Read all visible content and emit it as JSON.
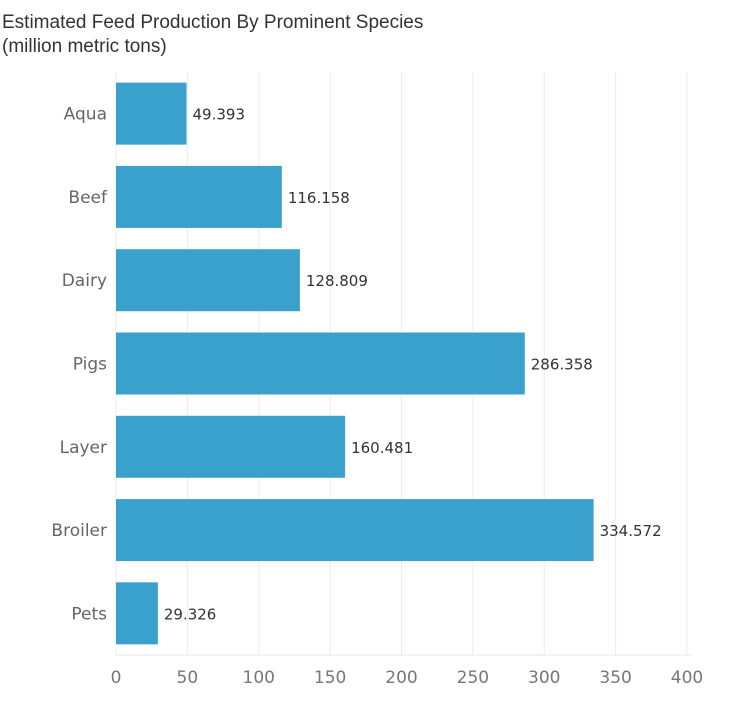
{
  "chart_data": {
    "type": "bar",
    "orientation": "horizontal",
    "title": "Estimated Feed Production By Prominent Species",
    "subtitle": "(million metric tons)",
    "categories": [
      "Aqua",
      "Beef",
      "Dairy",
      "Pigs",
      "Layer",
      "Broiler",
      "Pets"
    ],
    "values": [
      49.393,
      116.158,
      128.809,
      286.358,
      160.481,
      334.572,
      29.326
    ],
    "value_labels": [
      "49.393",
      "116.158",
      "128.809",
      "286.358",
      "160.481",
      "334.572",
      "29.326"
    ],
    "xlim": [
      0,
      400
    ],
    "xticks": [
      0,
      50,
      100,
      150,
      200,
      250,
      300,
      350,
      400
    ],
    "grid": "vertical",
    "bar_color": "#3aa1cc",
    "grid_color": "#ececec"
  }
}
